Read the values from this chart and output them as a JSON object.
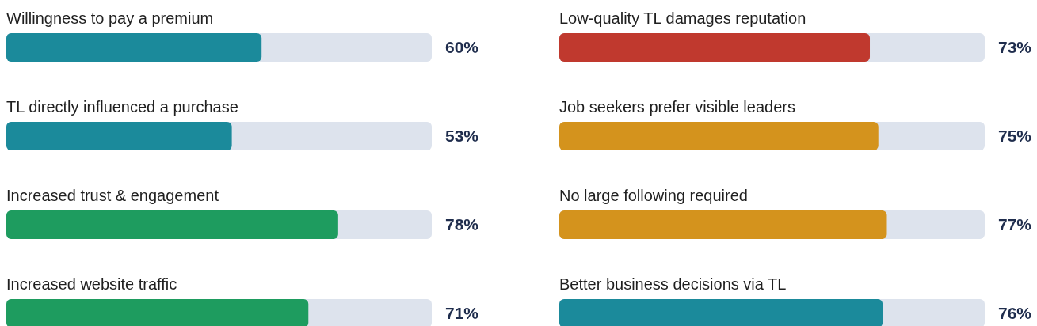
{
  "chart_data": [
    {
      "type": "bar",
      "orientation": "horizontal",
      "categories": [
        "Willingness to pay a premium",
        "TL directly influenced a purchase",
        "Increased trust & engagement",
        "Increased website traffic"
      ],
      "values": [
        60,
        53,
        78,
        71
      ],
      "colors": [
        "#1b8a9b",
        "#1b8a9b",
        "#1e9c5f",
        "#1e9c5f"
      ],
      "value_labels": [
        "60%",
        "53%",
        "78%",
        "71%"
      ],
      "xlim": [
        0,
        100
      ]
    },
    {
      "type": "bar",
      "orientation": "horizontal",
      "categories": [
        "Low-quality TL damages reputation",
        "Job seekers prefer visible leaders",
        "No large following required",
        "Better business decisions via TL"
      ],
      "values": [
        73,
        75,
        77,
        76
      ],
      "colors": [
        "#c0392e",
        "#d4931d",
        "#d4931d",
        "#1b8a9b"
      ],
      "value_labels": [
        "73%",
        "75%",
        "77%",
        "76%"
      ],
      "xlim": [
        0,
        100
      ]
    }
  ]
}
